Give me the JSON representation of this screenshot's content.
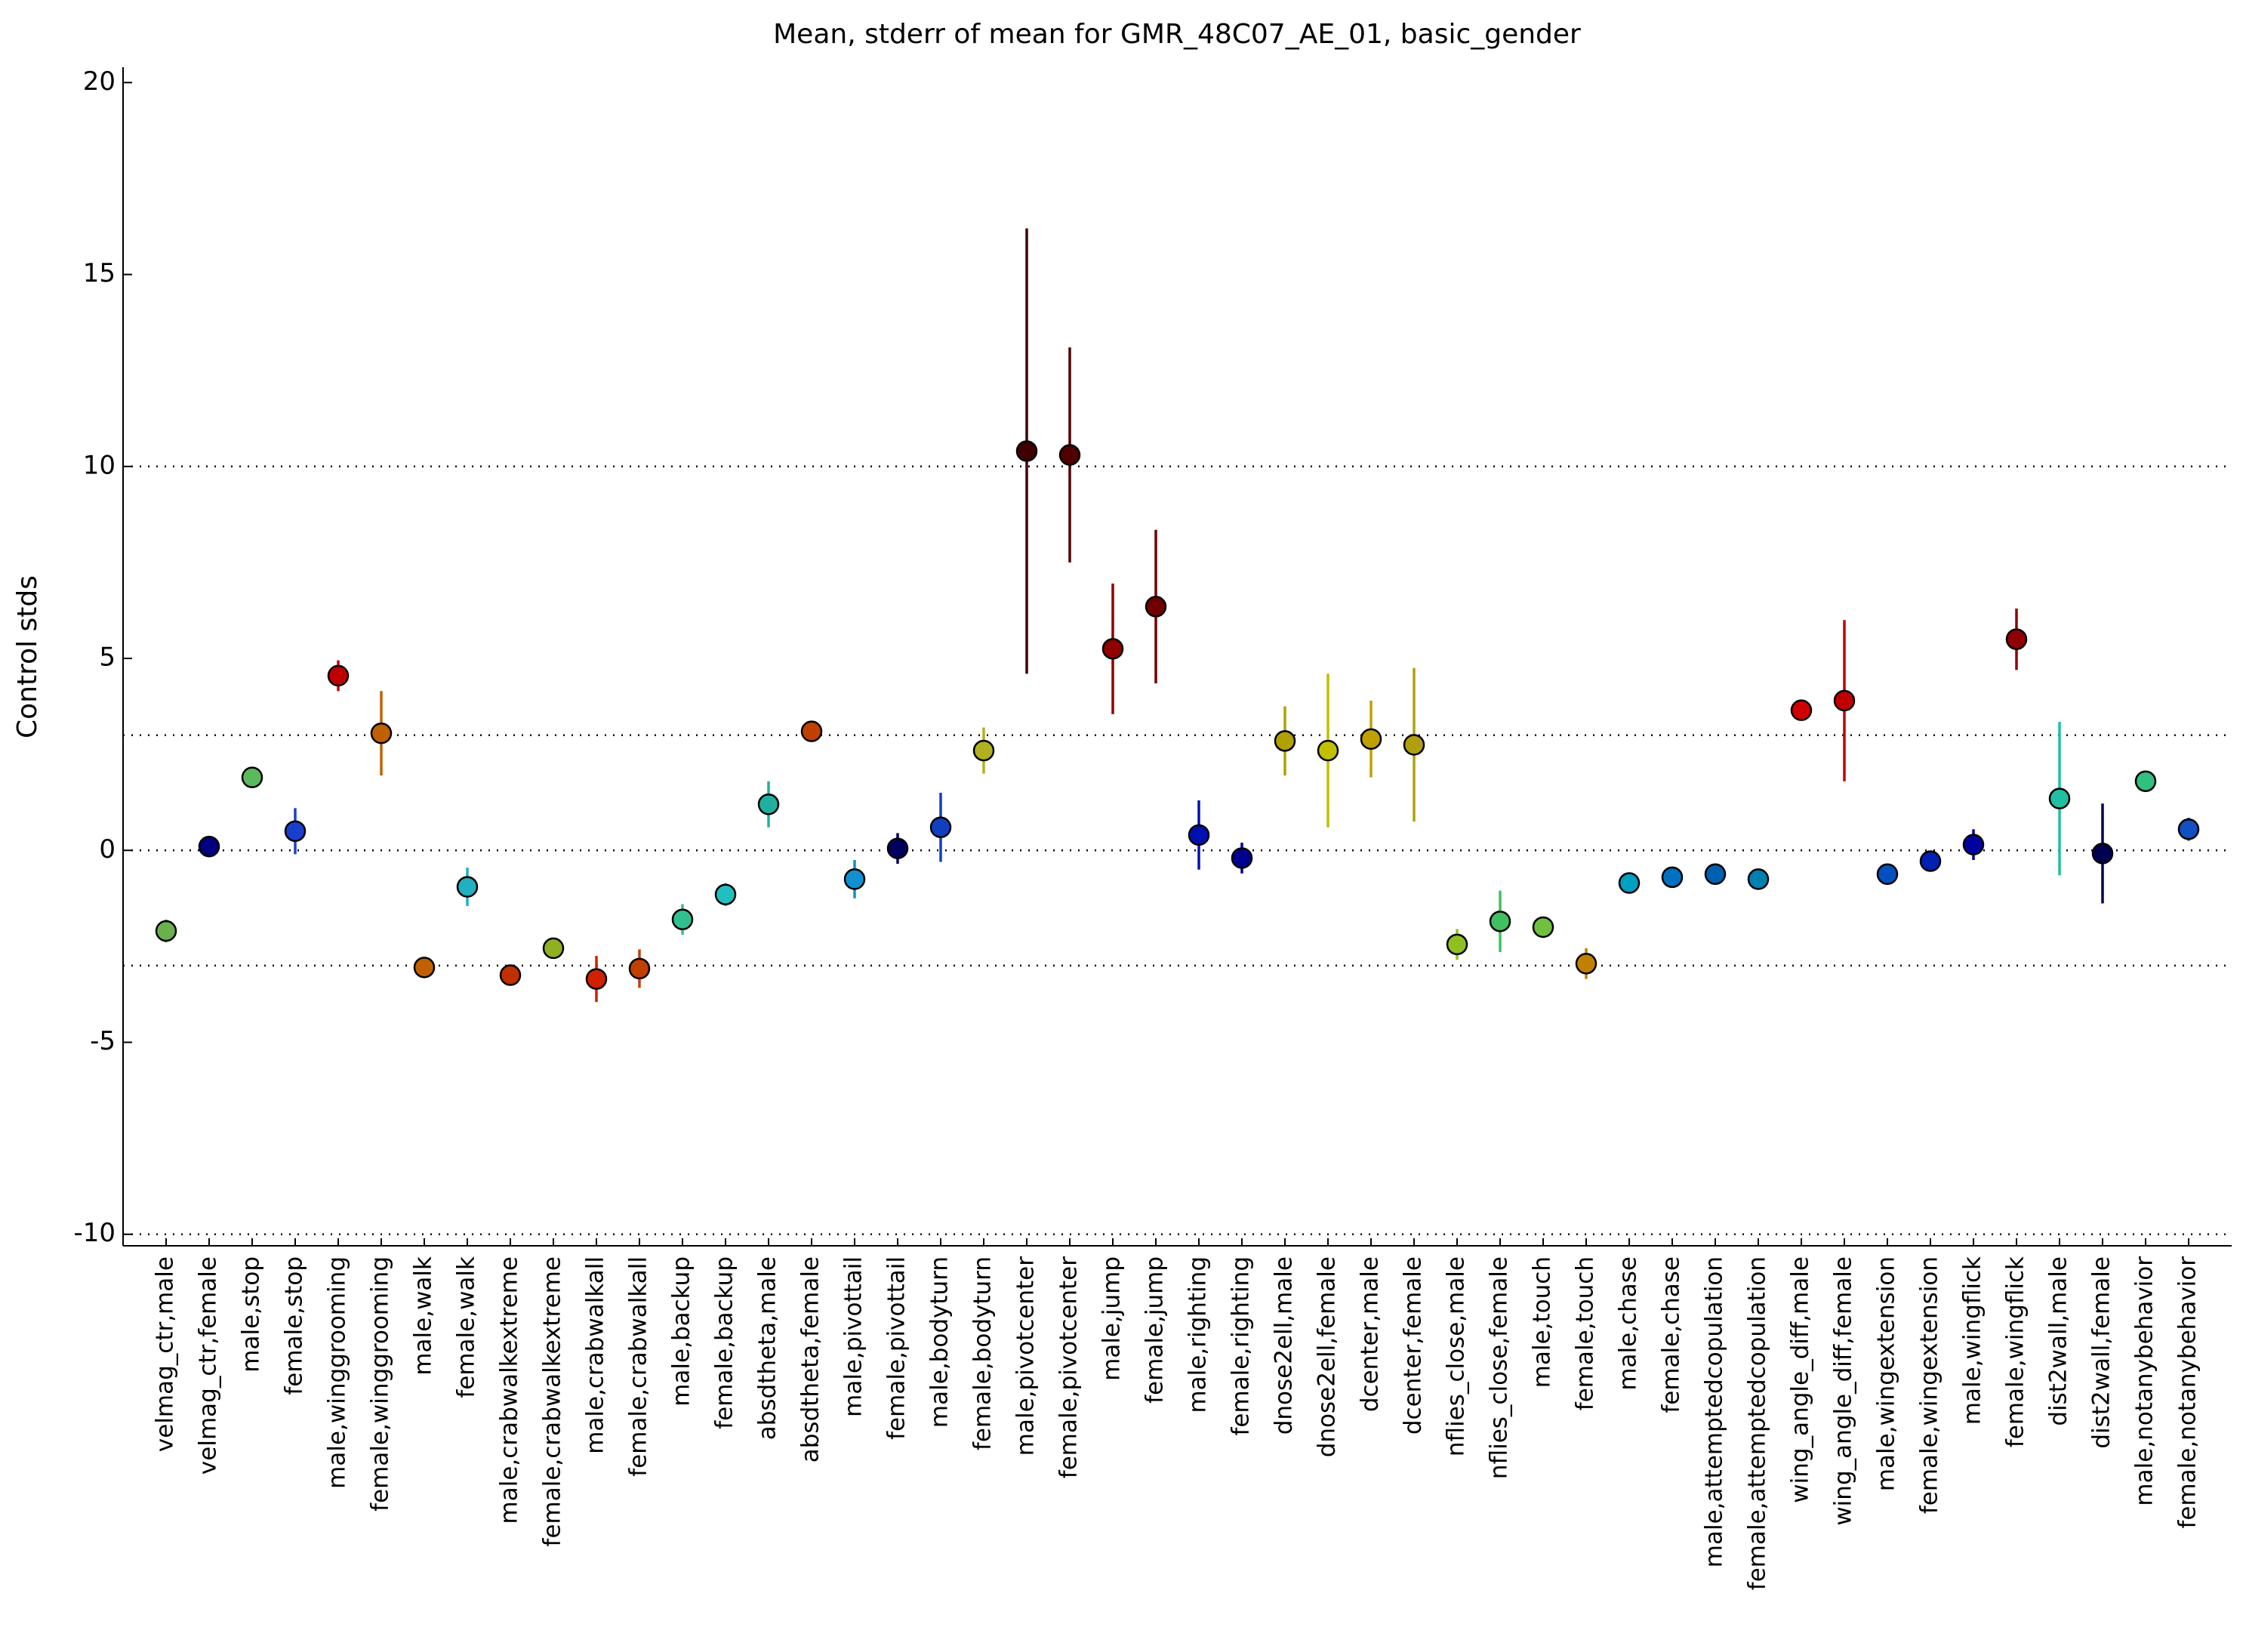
{
  "chart_data": {
    "type": "errorbar",
    "title": "Mean, stderr of mean for GMR_48C07_AE_01, basic_gender",
    "y_label": "Control stds",
    "categories": [
      "velmag_ctr,male",
      "velmag_ctr,female",
      "male,stop",
      "female,stop",
      "male,winggrooming",
      "female,winggrooming",
      "male,walk",
      "female,walk",
      "male,crabwalkextreme",
      "female,crabwalkextreme",
      "male,crabwalkall",
      "female,crabwalkall",
      "male,backup",
      "female,backup",
      "absdtheta,male",
      "absdtheta,female",
      "male,pivottail",
      "female,pivottail",
      "male,bodyturn",
      "female,bodyturn",
      "male,pivotcenter",
      "female,pivotcenter",
      "male,jump",
      "female,jump",
      "male,righting",
      "female,righting",
      "dnose2ell,male",
      "dnose2ell,female",
      "dcenter,male",
      "dcenter,female",
      "nflies_close,male",
      "nflies_close,female",
      "male,touch",
      "female,touch",
      "male,chase",
      "female,chase",
      "male,attemptedcopulation",
      "female,attemptedcopulation",
      "wing_angle_diff,male",
      "wing_angle_diff,female",
      "male,wingextension",
      "female,wingextension",
      "male,wingflick",
      "female,wingflick",
      "dist2wall,male",
      "dist2wall,female",
      "male,notanybehavior",
      "female,notanybehavior"
    ],
    "values": [
      -2.1,
      0.1,
      1.9,
      0.5,
      4.55,
      3.05,
      -3.05,
      -0.95,
      -3.25,
      -2.55,
      -3.35,
      -3.08,
      -1.8,
      -1.15,
      1.2,
      3.1,
      -0.75,
      0.05,
      0.6,
      2.6,
      10.4,
      10.3,
      5.25,
      6.35,
      0.4,
      -0.2,
      2.85,
      2.6,
      2.9,
      2.75,
      -2.45,
      -1.85,
      -2.0,
      -2.95,
      -0.85,
      -0.7,
      -0.62,
      -0.75,
      3.65,
      3.9,
      -0.62,
      -0.28,
      0.15,
      5.5,
      1.35,
      -0.08,
      1.8,
      0.55
    ],
    "errors": [
      0.3,
      0.2,
      0.2,
      0.6,
      0.4,
      1.1,
      0.2,
      0.5,
      0.2,
      0.1,
      0.6,
      0.5,
      0.4,
      0.3,
      0.6,
      0.2,
      0.5,
      0.4,
      0.9,
      0.6,
      5.8,
      2.8,
      1.7,
      2.0,
      0.9,
      0.4,
      0.9,
      2.0,
      1.0,
      2.0,
      0.4,
      0.8,
      0.1,
      0.4,
      0.1,
      0.1,
      0.1,
      0.1,
      0.1,
      2.1,
      0.1,
      0.1,
      0.4,
      0.8,
      2.0,
      1.3,
      0.1,
      0.3
    ],
    "colors": [
      "#6ab04c",
      "#000080",
      "#5cb85c",
      "#1a3fcf",
      "#c00000",
      "#c06000",
      "#c06000",
      "#20b0c0",
      "#c03000",
      "#90b020",
      "#d02000",
      "#c04000",
      "#30c090",
      "#20c0c0",
      "#20b0a0",
      "#c04000",
      "#1090d0",
      "#000060",
      "#1040c0",
      "#b0b020",
      "#400000",
      "#500000",
      "#900000",
      "#700000",
      "#0010b0",
      "#000090",
      "#b0a000",
      "#c0c000",
      "#c0a000",
      "#b0a010",
      "#90c020",
      "#40c060",
      "#70c040",
      "#c08000",
      "#00a0c0",
      "#0070c0",
      "#0060b0",
      "#0080b0",
      "#d00000",
      "#c00000",
      "#0050c0",
      "#0020b0",
      "#0000a0",
      "#900000",
      "#20c0a0",
      "#000050",
      "#30c080",
      "#1050c0"
    ],
    "ylim": [
      -10.3,
      20.4
    ],
    "yticks": [
      -10,
      -5,
      0,
      5,
      10,
      15,
      20
    ],
    "hlines": [
      -10,
      -3,
      0,
      3,
      10
    ]
  }
}
